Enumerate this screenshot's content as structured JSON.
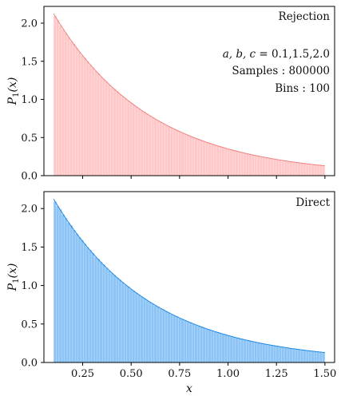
{
  "chart_data": [
    {
      "type": "bar",
      "panel": "top",
      "title": "Rejection",
      "ylabel": "P_1(x)",
      "xlabel": "",
      "xlim": [
        0.05,
        1.55
      ],
      "ylim": [
        0,
        2.22
      ],
      "xticks": [
        0.25,
        0.5,
        0.75,
        1.0,
        1.25,
        1.5
      ],
      "yticks": [
        0.0,
        0.5,
        1.0,
        1.5,
        2.0
      ],
      "ytick_labels": [
        "0.0",
        "0.5",
        "1.0",
        "1.5",
        "2.0"
      ],
      "x_range": [
        0.1,
        1.5
      ],
      "bins": 100,
      "curve_model": {
        "amplitude": 2.1242,
        "decay": 2.0,
        "offset": 0.1
      },
      "bar_color": "#ffc8c8",
      "bar_edge": "#ffe6e6",
      "line_color": "#f08080",
      "annotations": [
        "Rejection",
        "a, b, c = 0.1,1.5,2.0",
        "Samples : 800000",
        "Bins : 100"
      ]
    },
    {
      "type": "bar",
      "panel": "bottom",
      "title": "Direct",
      "ylabel": "P_1(x)",
      "xlabel": "x",
      "xlim": [
        0.05,
        1.55
      ],
      "ylim": [
        0,
        2.22
      ],
      "xticks": [
        0.25,
        0.5,
        0.75,
        1.0,
        1.25,
        1.5
      ],
      "xtick_labels": [
        "0.25",
        "0.50",
        "0.75",
        "1.00",
        "1.25",
        "1.50"
      ],
      "yticks": [
        0.0,
        0.5,
        1.0,
        1.5,
        2.0
      ],
      "ytick_labels": [
        "0.0",
        "0.5",
        "1.0",
        "1.5",
        "2.0"
      ],
      "x_range": [
        0.1,
        1.5
      ],
      "bins": 100,
      "curve_model": {
        "amplitude": 2.1242,
        "decay": 2.0,
        "offset": 0.1
      },
      "bar_color": "#8cc4f5",
      "bar_edge": "#c8e2fb",
      "line_color": "#1e88e5",
      "annotations": [
        "Direct"
      ]
    }
  ],
  "labels": {
    "top_title": "Rejection",
    "params_prefix": "a, b, c",
    "params_value": " = 0.1,1.5,2.0",
    "samples": "Samples : 800000",
    "bins": "Bins : 100",
    "bottom_title": "Direct",
    "ylabel_P": "P",
    "ylabel_sub": "1",
    "ylabel_arg": "(x)",
    "xlabel": "x"
  }
}
